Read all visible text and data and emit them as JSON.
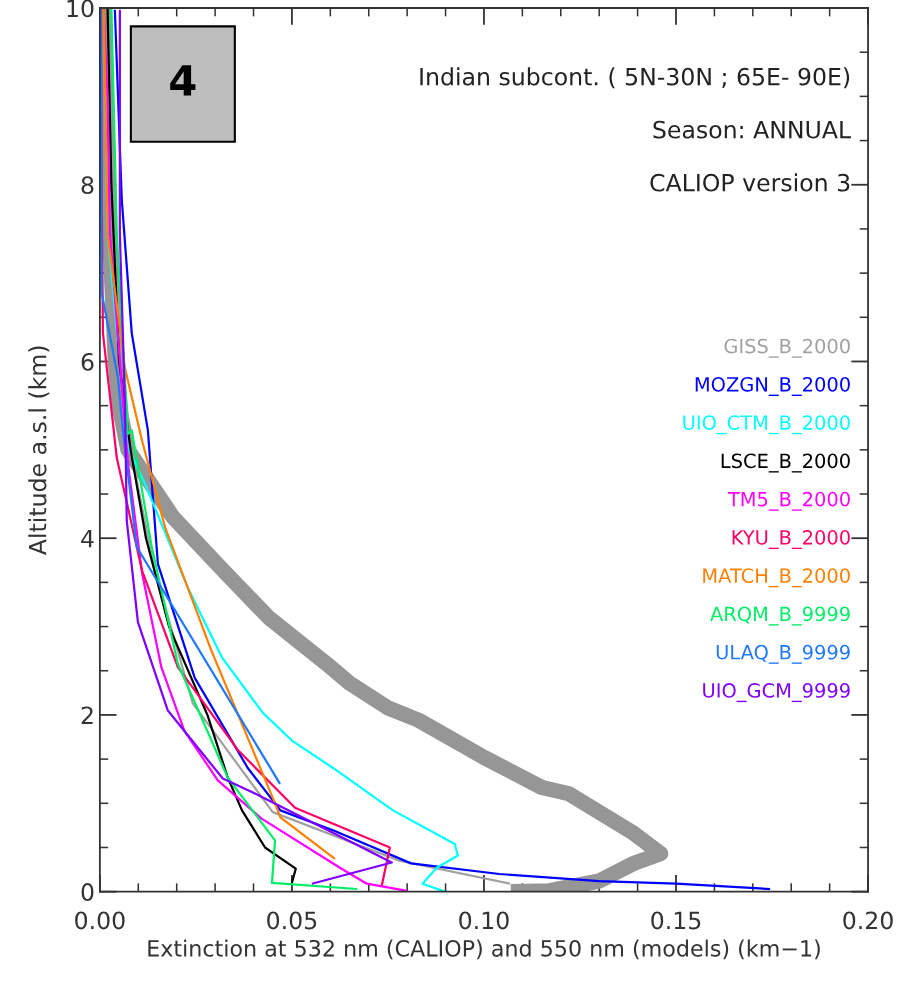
{
  "chart_data": {
    "type": "line",
    "xlabel": "Extinction at 532 nm (CALIOP) and 550 nm (models) (km−1)",
    "ylabel": "Altitude a.s.l (km)",
    "annotations": [
      "4",
      "Indian subcont. ( 5N-30N ; 65E- 90E)",
      "Season: ANNUAL",
      "CALIOP version 3"
    ],
    "xlim": [
      0,
      0.2
    ],
    "xticks": [
      {
        "value": 0,
        "label": "0.00"
      },
      {
        "value": 0.05,
        "label": "0.05"
      },
      {
        "value": 0.1,
        "label": "0.10"
      },
      {
        "value": 0.15,
        "label": "0.15"
      },
      {
        "value": 0.2,
        "label": "0.20"
      }
    ],
    "ylim": [
      0,
      10
    ],
    "yticks": [
      0,
      2,
      4,
      6,
      8,
      10
    ],
    "grid": false,
    "legend": "right",
    "series": [
      {
        "color": "#969696",
        "x": [
          0.107,
          0.117,
          0.13,
          0.139,
          0.146,
          0.139,
          0.122,
          0.115,
          0.1,
          0.083,
          0.075,
          0.065,
          0.059,
          0.044,
          0.032,
          0.019,
          0.0073,
          0.005,
          0.004,
          0.002,
          0.001
        ],
        "values": [
          0.0,
          0.01,
          0.12,
          0.32,
          0.43,
          0.66,
          1.11,
          1.18,
          1.52,
          1.94,
          2.08,
          2.36,
          2.58,
          3.1,
          3.64,
          4.24,
          5.0,
          5.5,
          6.0,
          8.0,
          10.0
        ]
      },
      {
        "name": "GISS_B_2000",
        "color": "#a0a0a0",
        "x": [
          0.1068,
          0.078,
          0.045,
          0.0242,
          0.0143,
          0.008,
          0.004,
          0.002
        ],
        "values": [
          0.09,
          0.35,
          0.9,
          2.13,
          3.63,
          5.0,
          7.0,
          10.0
        ]
      },
      {
        "name": "MOZGN_B_2000",
        "color": "#0000ff",
        "x": [
          0.1745,
          0.15,
          0.13,
          0.104,
          0.081,
          0.061,
          0.047,
          0.0385,
          0.0247,
          0.0151,
          0.0125,
          0.0083,
          0.0057,
          0.0039
        ],
        "values": [
          0.03,
          0.09,
          0.12,
          0.2,
          0.32,
          0.69,
          0.92,
          1.4,
          2.42,
          3.71,
          5.22,
          6.32,
          7.83,
          9.98
        ]
      },
      {
        "name": "UIO_CTM_B_2000",
        "color": "#00ffff",
        "x": [
          0.0898,
          0.084,
          0.0877,
          0.0932,
          0.0924,
          0.0763,
          0.0607,
          0.05,
          0.0425,
          0.0318,
          0.0229,
          0.0117,
          0.0073,
          0.002,
          0.001
        ],
        "values": [
          0.0,
          0.09,
          0.27,
          0.41,
          0.54,
          0.92,
          1.4,
          1.71,
          2.02,
          2.65,
          3.44,
          4.62,
          5.03,
          7.45,
          10.0
        ]
      },
      {
        "name": "LSCE_B_2000",
        "color": "#000000",
        "x": [
          0.05,
          0.051,
          0.043,
          0.037,
          0.0333,
          0.028,
          0.018,
          0.012,
          0.008,
          0.005,
          0.003,
          0.002
        ],
        "values": [
          0.1,
          0.26,
          0.5,
          0.92,
          1.29,
          2.0,
          3.0,
          4.0,
          5.0,
          6.0,
          8.0,
          10.0
        ]
      },
      {
        "name": "TM5_B_2000",
        "color": "#ff00ff",
        "x": [
          0.08,
          0.0695,
          0.0625,
          0.042,
          0.0307,
          0.022,
          0.016,
          0.011,
          0.0073,
          0.0026,
          0.002,
          0.001
        ],
        "values": [
          0.01,
          0.09,
          0.27,
          0.83,
          1.26,
          1.82,
          2.54,
          3.6,
          4.85,
          7.45,
          8.96,
          10.0
        ]
      },
      {
        "name": "KYU_B_2000",
        "color": "#ff0066",
        "x": [
          0.0734,
          0.0755,
          0.0508,
          0.036,
          0.0203,
          0.011,
          0.0044,
          0.0008,
          0.0005,
          0.0003
        ],
        "values": [
          0.07,
          0.5,
          0.95,
          1.6,
          2.54,
          3.63,
          4.91,
          6.32,
          7.8,
          10.0
        ]
      },
      {
        "name": "MATCH_B_2000",
        "color": "#ff7f00",
        "x": [
          0.0612,
          0.047,
          0.0456,
          0.029,
          0.017,
          0.011,
          0.0065,
          0.002,
          0.0013,
          0.001
        ],
        "values": [
          0.37,
          0.84,
          1.0,
          2.73,
          4.12,
          5.1,
          5.93,
          7.45,
          9.3,
          10.0
        ]
      },
      {
        "name": "ARQM_B_9999",
        "color": "#00ee66",
        "x": [
          0.067,
          0.0448,
          0.0456,
          0.0333,
          0.0203,
          0.0135,
          0.0083,
          0.0073,
          0.0044,
          0.003
        ],
        "values": [
          0.03,
          0.1,
          0.58,
          1.29,
          2.58,
          3.9,
          5.22,
          5.18,
          7.45,
          10.0
        ]
      },
      {
        "name": "ULAQ_B_9999",
        "color": "#1e78ff",
        "x": [
          0.0469,
          0.0096,
          0.006,
          0.0047,
          0.0005,
          0.0002
        ],
        "values": [
          1.22,
          3.9,
          5.22,
          5.82,
          6.77,
          10.0
        ]
      },
      {
        "name": "UIO_GCM_9999",
        "color": "#8000ff",
        "x": [
          0.0552,
          0.076,
          0.039,
          0.032,
          0.0177,
          0.0099,
          0.007,
          0.0065,
          0.0052,
          0.0052
        ],
        "values": [
          0.09,
          0.33,
          1.14,
          1.28,
          2.05,
          3.05,
          4.2,
          5.56,
          7.45,
          9.98
        ]
      }
    ]
  }
}
